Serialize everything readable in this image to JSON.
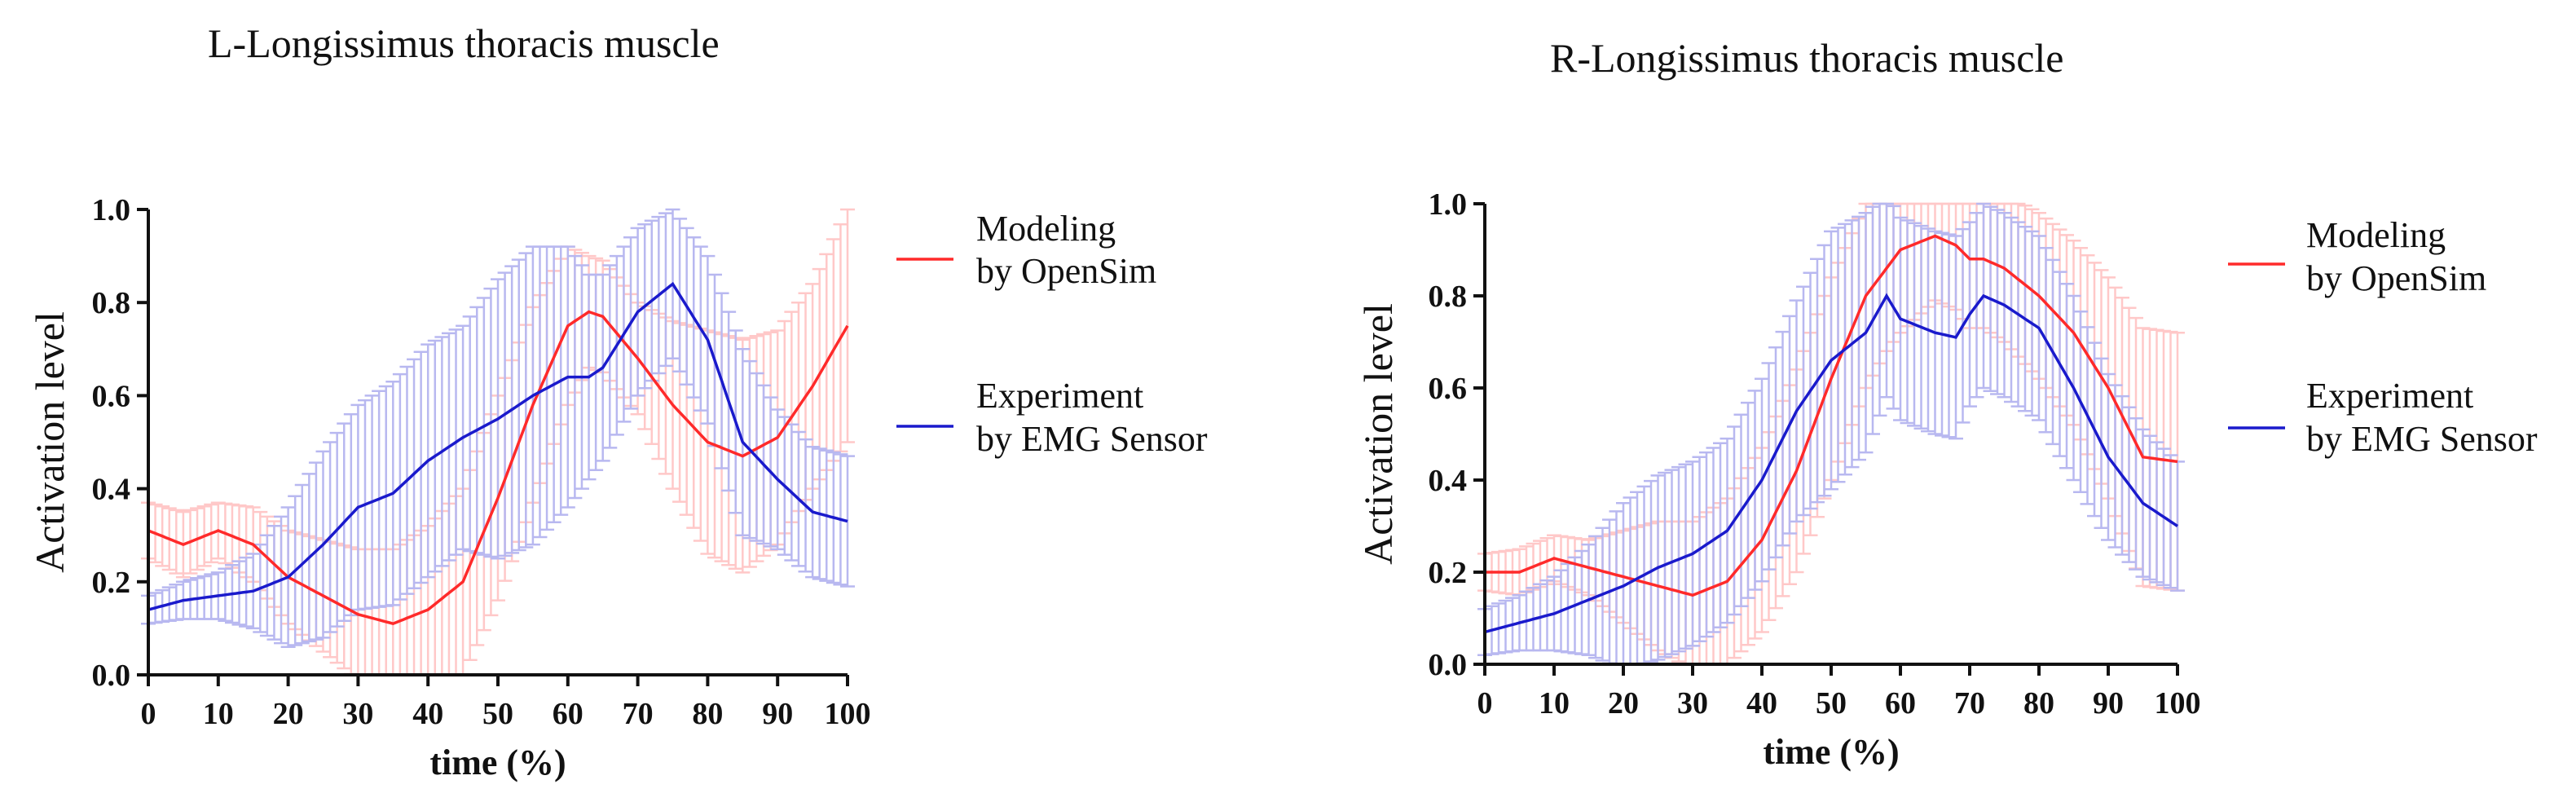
{
  "chart_data": [
    {
      "type": "line",
      "title": "L-Longissimus thoracis muscle",
      "xlabel": "time (%)",
      "ylabel": "Activation level",
      "xlim": [
        0,
        100
      ],
      "ylim": [
        0,
        1.0
      ],
      "xticks": [
        "0",
        "10",
        "20",
        "30",
        "40",
        "50",
        "60",
        "70",
        "80",
        "90",
        "100"
      ],
      "yticks": [
        "0.0",
        "0.2",
        "0.4",
        "0.6",
        "0.8",
        "1.0"
      ],
      "x": [
        0,
        5,
        10,
        15,
        20,
        25,
        30,
        35,
        40,
        45,
        50,
        55,
        60,
        63,
        65,
        70,
        75,
        80,
        85,
        90,
        95,
        100
      ],
      "series": [
        {
          "name": "Modeling by OpenSim",
          "legend_lines": [
            "Modeling",
            "by OpenSim"
          ],
          "color": "#ff2a2a",
          "errcolor": "#ffc8c8",
          "values": [
            0.31,
            0.28,
            0.31,
            0.28,
            0.21,
            0.17,
            0.13,
            0.11,
            0.14,
            0.2,
            0.38,
            0.58,
            0.75,
            0.78,
            0.77,
            0.68,
            0.58,
            0.5,
            0.47,
            0.51,
            0.62,
            0.75
          ],
          "errors": [
            0.06,
            0.07,
            0.06,
            0.08,
            0.1,
            0.12,
            0.14,
            0.16,
            0.18,
            0.2,
            0.22,
            0.21,
            0.17,
            0.12,
            0.12,
            0.12,
            0.18,
            0.24,
            0.25,
            0.23,
            0.22,
            0.25
          ]
        },
        {
          "name": "Experiment by EMG Sensor",
          "legend_lines": [
            "Experiment",
            "by EMG Sensor"
          ],
          "color": "#1a1acc",
          "errcolor": "#b8b8f0",
          "values": [
            0.14,
            0.16,
            0.17,
            0.18,
            0.21,
            0.28,
            0.36,
            0.39,
            0.46,
            0.51,
            0.55,
            0.6,
            0.64,
            0.64,
            0.66,
            0.78,
            0.84,
            0.72,
            0.5,
            0.42,
            0.35,
            0.33
          ],
          "errors": [
            0.03,
            0.04,
            0.05,
            0.08,
            0.15,
            0.2,
            0.22,
            0.24,
            0.25,
            0.24,
            0.3,
            0.32,
            0.28,
            0.22,
            0.2,
            0.18,
            0.16,
            0.18,
            0.2,
            0.15,
            0.14,
            0.14
          ]
        }
      ]
    },
    {
      "type": "line",
      "title": "R-Longissimus thoracis muscle",
      "xlabel": "time (%)",
      "ylabel": "Activation level",
      "xlim": [
        0,
        100
      ],
      "ylim": [
        0,
        1.0
      ],
      "xticks": [
        "0",
        "10",
        "20",
        "30",
        "40",
        "50",
        "60",
        "70",
        "80",
        "90",
        "100"
      ],
      "yticks": [
        "0.0",
        "0.2",
        "0.4",
        "0.6",
        "0.8",
        "1.0"
      ],
      "x": [
        0,
        5,
        10,
        15,
        20,
        25,
        30,
        35,
        40,
        45,
        50,
        55,
        58,
        60,
        65,
        68,
        70,
        72,
        75,
        80,
        85,
        90,
        95,
        100
      ],
      "series": [
        {
          "name": "Modeling by OpenSim",
          "legend_lines": [
            "Modeling",
            "by OpenSim"
          ],
          "color": "#ff2a2a",
          "errcolor": "#ffc8c8",
          "values": [
            0.2,
            0.2,
            0.23,
            0.21,
            0.19,
            0.17,
            0.15,
            0.18,
            0.27,
            0.42,
            0.62,
            0.8,
            0.86,
            0.9,
            0.93,
            0.91,
            0.88,
            0.88,
            0.86,
            0.8,
            0.72,
            0.6,
            0.45,
            0.44
          ],
          "errors": [
            0.04,
            0.05,
            0.05,
            0.06,
            0.1,
            0.14,
            0.16,
            0.18,
            0.2,
            0.22,
            0.22,
            0.2,
            0.18,
            0.18,
            0.14,
            0.14,
            0.15,
            0.15,
            0.16,
            0.18,
            0.2,
            0.24,
            0.28,
            0.28
          ]
        },
        {
          "name": "Experiment by EMG Sensor",
          "legend_lines": [
            "Experiment",
            "by EMG Sensor"
          ],
          "color": "#1a1acc",
          "errcolor": "#b8b8f0",
          "values": [
            0.07,
            0.09,
            0.11,
            0.14,
            0.17,
            0.21,
            0.24,
            0.29,
            0.4,
            0.55,
            0.66,
            0.72,
            0.8,
            0.75,
            0.72,
            0.71,
            0.76,
            0.8,
            0.78,
            0.73,
            0.6,
            0.45,
            0.35,
            0.3
          ],
          "errors": [
            0.05,
            0.06,
            0.08,
            0.12,
            0.18,
            0.2,
            0.2,
            0.2,
            0.22,
            0.24,
            0.28,
            0.26,
            0.22,
            0.22,
            0.22,
            0.22,
            0.2,
            0.2,
            0.2,
            0.2,
            0.2,
            0.18,
            0.16,
            0.14
          ]
        }
      ]
    }
  ]
}
